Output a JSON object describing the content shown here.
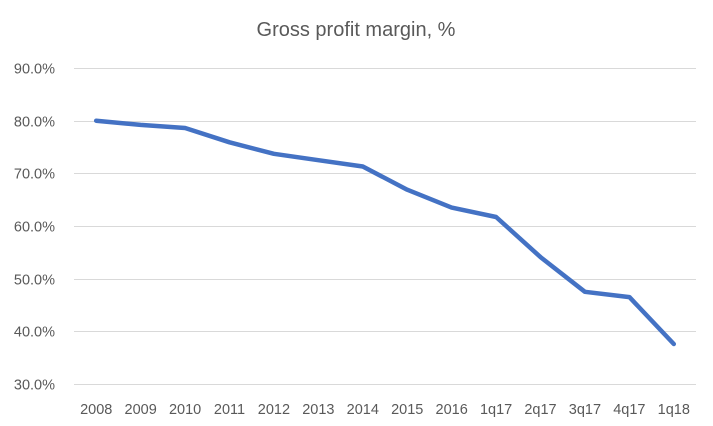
{
  "chart_data": {
    "type": "line",
    "title": "Gross profit margin, %",
    "xlabel": "",
    "ylabel": "",
    "categories": [
      "2008",
      "2009",
      "2010",
      "2011",
      "2012",
      "2013",
      "2014",
      "2015",
      "2016",
      "1q17",
      "2q17",
      "3q17",
      "4q17",
      "1q18"
    ],
    "series": [
      {
        "values": [
          0.8,
          0.792,
          0.786,
          0.759,
          0.737,
          0.725,
          0.713,
          0.669,
          0.635,
          0.617,
          0.541,
          0.475,
          0.465,
          0.376
        ],
        "color": "#4472c4"
      }
    ],
    "ylim": [
      0.3,
      0.9
    ],
    "yticks": [
      0.3,
      0.4,
      0.5,
      0.6,
      0.7,
      0.8,
      0.9
    ],
    "ytick_labels": [
      "30.0%",
      "40.0%",
      "50.0%",
      "60.0%",
      "70.0%",
      "80.0%",
      "90.0%"
    ],
    "grid": true,
    "legend": "none"
  }
}
